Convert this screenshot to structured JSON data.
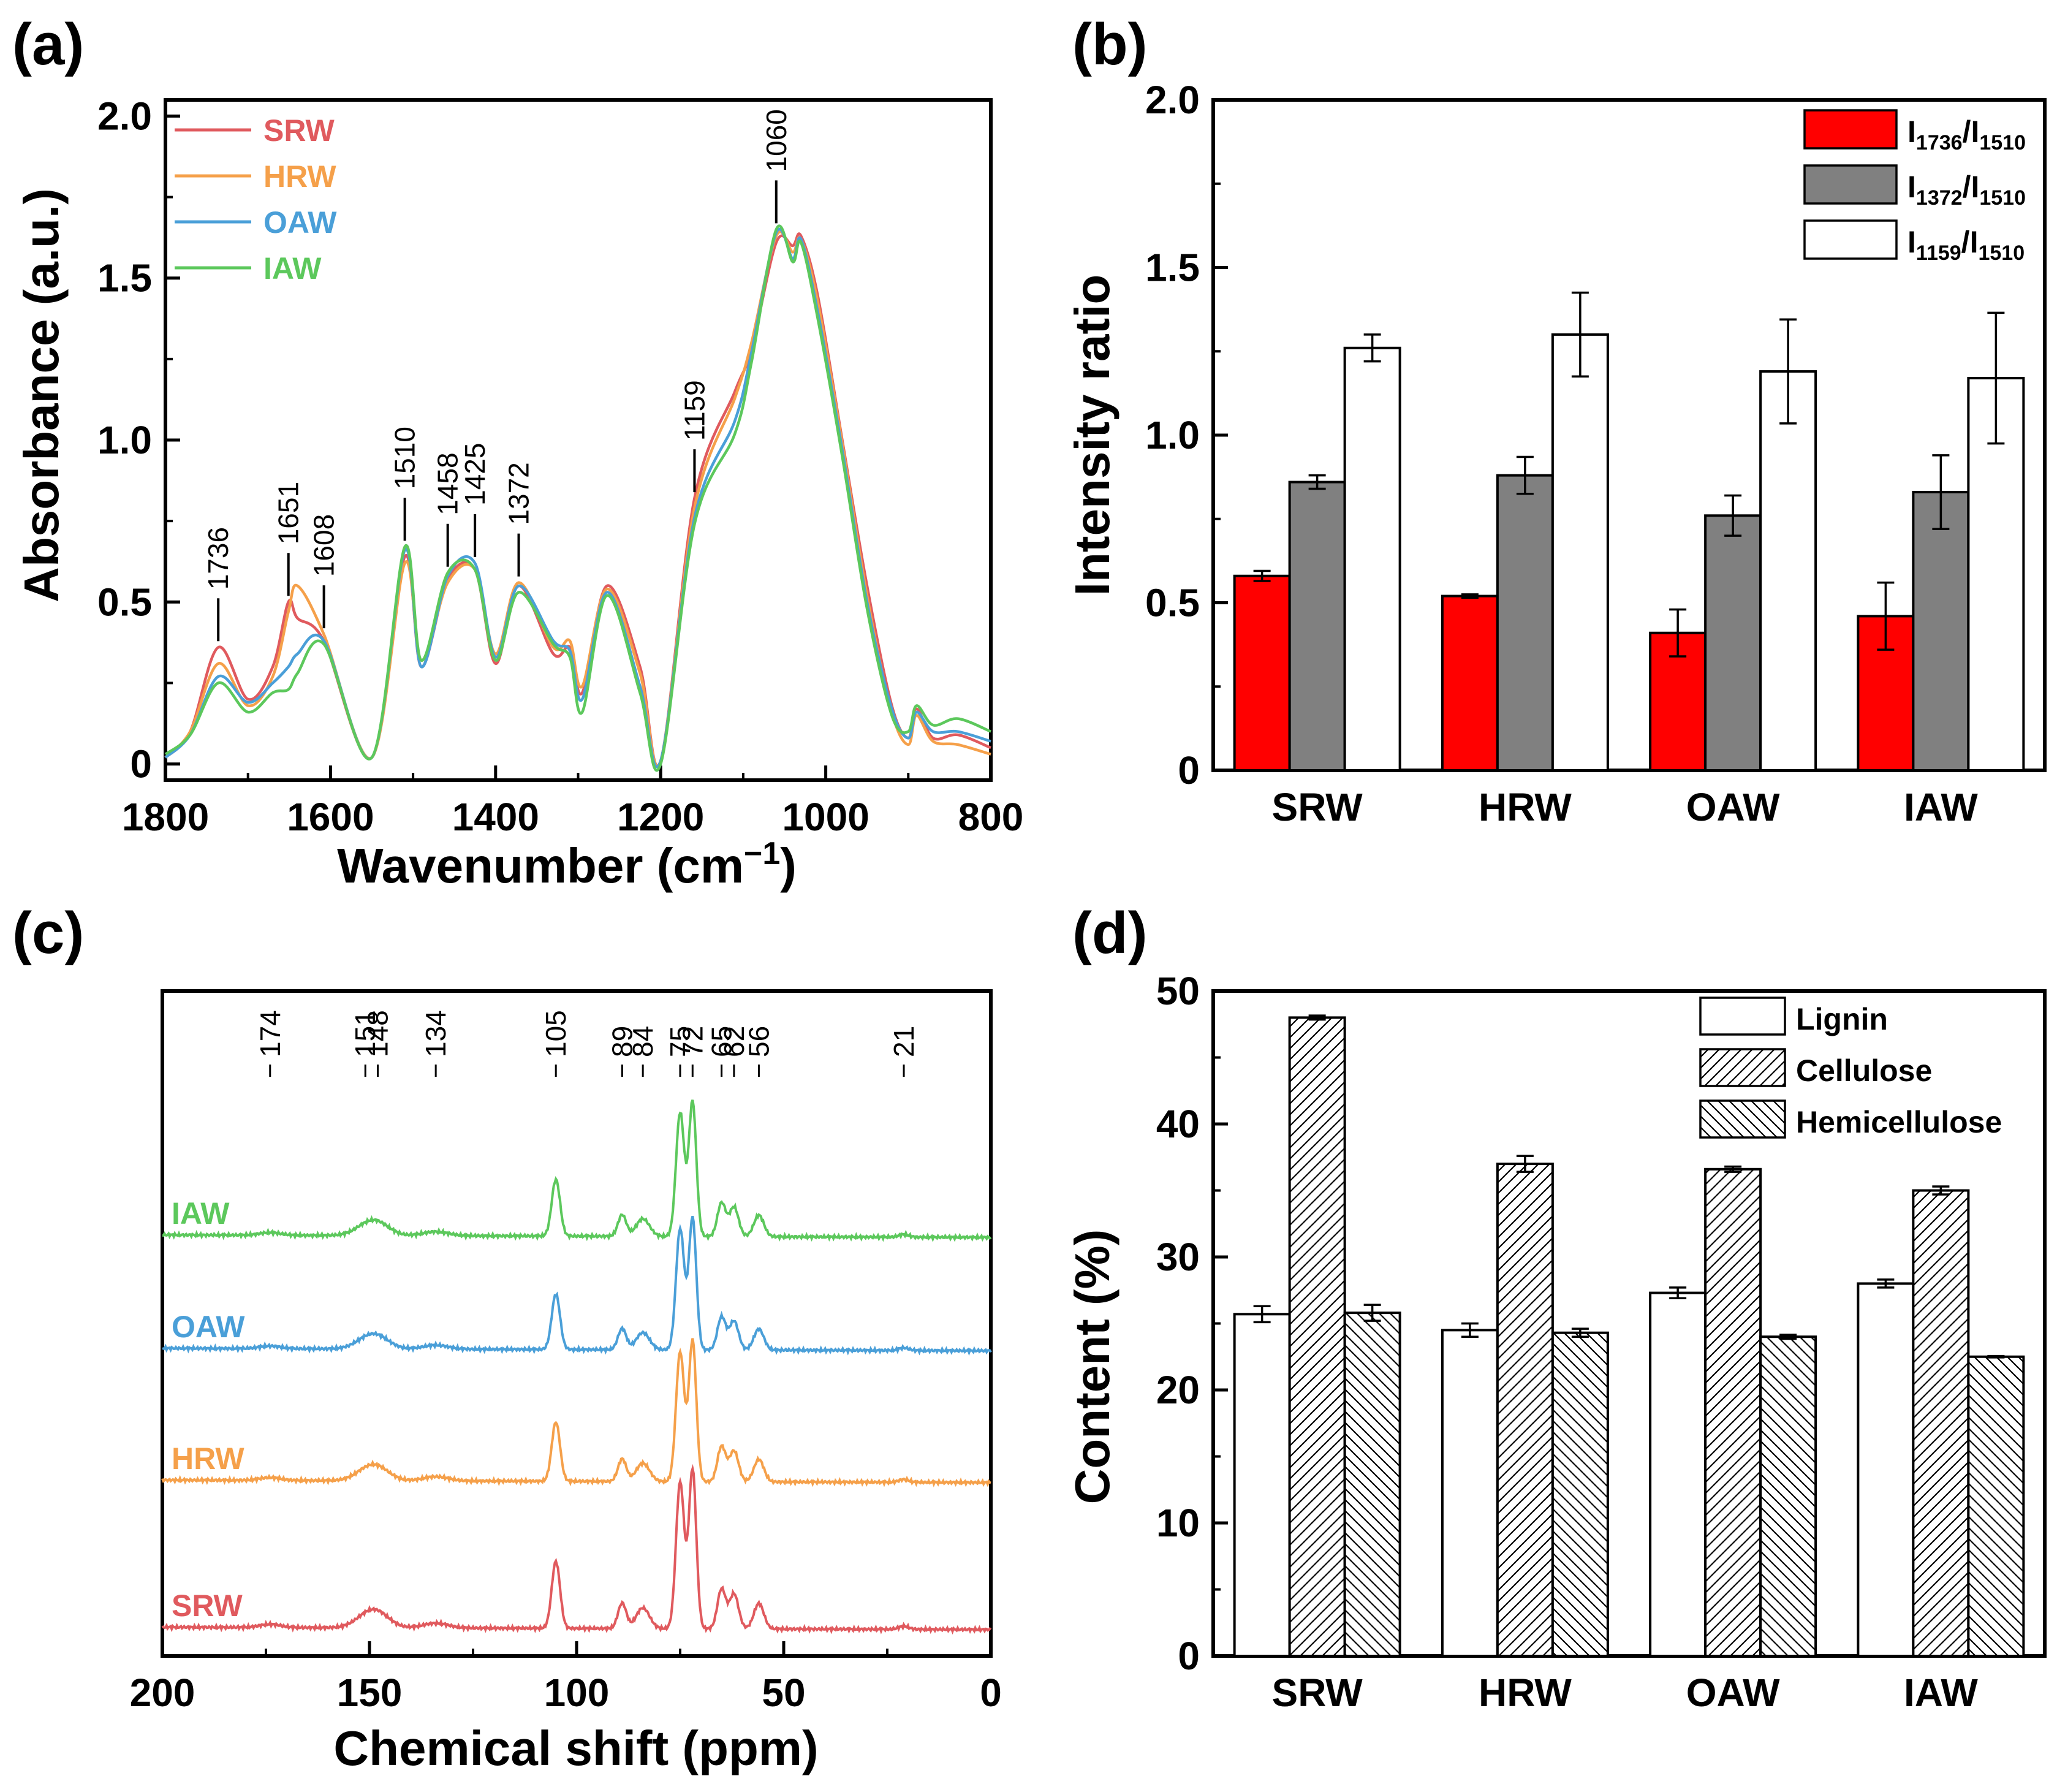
{
  "chart_data": [
    {
      "id": "a",
      "panel_label": "(a)",
      "type": "line",
      "title": "",
      "xlabel": "Wavenumber (cm",
      "xlabel_sup": "−1",
      "xlabel_close": ")",
      "ylabel": "Absorbance (a.u.)",
      "xlim": [
        1800,
        800
      ],
      "ylim": [
        -0.05,
        2.05
      ],
      "xticks": [
        1800,
        1600,
        1400,
        1200,
        1000,
        800
      ],
      "yticks": [
        0,
        0.5,
        1.0,
        1.5,
        2.0
      ],
      "ytick_labels": [
        "0",
        "0.5",
        "1.0",
        "1.5",
        "2.0"
      ],
      "legend_position": "top-left",
      "series": [
        {
          "name": "SRW",
          "color": "#e05a5e",
          "y": [
            0.02,
            0.1,
            0.36,
            0.2,
            0.3,
            0.5,
            0.45,
            0.38,
            0.02,
            0.64,
            0.3,
            0.57,
            0.6,
            0.31,
            0.55,
            0.34,
            0.36,
            0.22,
            0.55,
            0.3,
            0.01,
            0.82,
            1.15,
            1.28,
            1.61,
            1.6,
            1.63,
            1.45,
            1.0,
            0.55,
            0.18,
            0.08,
            0.17,
            0.08,
            0.09,
            0.05
          ]
        },
        {
          "name": "HRW",
          "color": "#f5a04a",
          "y": [
            0.02,
            0.1,
            0.31,
            0.18,
            0.27,
            0.47,
            0.55,
            0.4,
            0.02,
            0.62,
            0.32,
            0.56,
            0.6,
            0.34,
            0.56,
            0.36,
            0.38,
            0.24,
            0.54,
            0.28,
            0.01,
            0.79,
            1.13,
            1.3,
            1.63,
            1.58,
            1.62,
            1.43,
            0.99,
            0.52,
            0.16,
            0.06,
            0.15,
            0.07,
            0.06,
            0.03
          ]
        },
        {
          "name": "OAW",
          "color": "#4a9fd8",
          "y": [
            0.02,
            0.09,
            0.27,
            0.19,
            0.25,
            0.3,
            0.34,
            0.38,
            0.02,
            0.66,
            0.3,
            0.58,
            0.62,
            0.33,
            0.55,
            0.38,
            0.35,
            0.2,
            0.53,
            0.24,
            0.01,
            0.76,
            1.06,
            1.27,
            1.64,
            1.56,
            1.62,
            1.4,
            0.97,
            0.5,
            0.17,
            0.08,
            0.16,
            0.1,
            0.1,
            0.07
          ]
        },
        {
          "name": "IAW",
          "color": "#5cc85c",
          "y": [
            0.03,
            0.09,
            0.25,
            0.16,
            0.22,
            0.23,
            0.28,
            0.37,
            0.02,
            0.67,
            0.32,
            0.59,
            0.6,
            0.32,
            0.53,
            0.37,
            0.33,
            0.16,
            0.52,
            0.22,
            0.0,
            0.74,
            1.02,
            1.24,
            1.65,
            1.55,
            1.61,
            1.38,
            0.95,
            0.48,
            0.15,
            0.1,
            0.18,
            0.12,
            0.14,
            0.1
          ]
        }
      ],
      "x": [
        1800,
        1770,
        1736,
        1700,
        1670,
        1651,
        1640,
        1608,
        1550,
        1510,
        1490,
        1458,
        1425,
        1400,
        1372,
        1330,
        1310,
        1295,
        1265,
        1225,
        1200,
        1159,
        1110,
        1090,
        1060,
        1040,
        1030,
        1010,
        980,
        950,
        920,
        900,
        890,
        870,
        840,
        800
      ],
      "peak_labels": [
        {
          "x": 1736,
          "text": "1736"
        },
        {
          "x": 1651,
          "text": "1651"
        },
        {
          "x": 1608,
          "text": "1608"
        },
        {
          "x": 1510,
          "text": "1510"
        },
        {
          "x": 1458,
          "text": "1458"
        },
        {
          "x": 1425,
          "text": "1425"
        },
        {
          "x": 1372,
          "text": "1372"
        },
        {
          "x": 1159,
          "text": "1159"
        },
        {
          "x": 1060,
          "text": "1060"
        }
      ]
    },
    {
      "id": "b",
      "panel_label": "(b)",
      "type": "bar",
      "title": "",
      "xlabel": "",
      "ylabel": "Intensity ratio",
      "categories": [
        "SRW",
        "HRW",
        "OAW",
        "IAW"
      ],
      "ylim": [
        0,
        2.0
      ],
      "yticks": [
        0,
        0.5,
        1.0,
        1.5,
        2.0
      ],
      "ytick_labels": [
        "0",
        "0.5",
        "1.0",
        "1.5",
        "2.0"
      ],
      "legend_position": "top-right",
      "series": [
        {
          "name": "I1736/I1510",
          "label_main": "I",
          "sub1": "1736",
          "slash": "/I",
          "sub2": "1510",
          "color": "#ff0000",
          "values": [
            0.58,
            0.52,
            0.41,
            0.46
          ],
          "errors": [
            0.015,
            0.005,
            0.07,
            0.1
          ]
        },
        {
          "name": "I1372/I1510",
          "label_main": "I",
          "sub1": "1372",
          "slash": "/I",
          "sub2": "1510",
          "color": "#808080",
          "values": [
            0.86,
            0.88,
            0.76,
            0.83
          ],
          "errors": [
            0.02,
            0.055,
            0.06,
            0.11
          ]
        },
        {
          "name": "I1159/I1510",
          "label_main": "I",
          "sub1": "1159",
          "slash": "/I",
          "sub2": "1510",
          "color": "#ffffff",
          "values": [
            1.26,
            1.3,
            1.19,
            1.17
          ],
          "errors": [
            0.04,
            0.125,
            0.155,
            0.195
          ]
        }
      ]
    },
    {
      "id": "c",
      "panel_label": "(c)",
      "type": "line",
      "title": "",
      "xlabel": "Chemical shift (ppm)",
      "ylabel": "",
      "xlim": [
        200,
        0
      ],
      "xticks": [
        200,
        150,
        100,
        50,
        0
      ],
      "peak_labels": [
        "174",
        "151",
        "148",
        "134",
        "105",
        "89",
        "84",
        "75",
        "72",
        "65",
        "62",
        "56",
        "21"
      ],
      "peak_positions": [
        174,
        151,
        148,
        134,
        105,
        89,
        84,
        75,
        72,
        65,
        62,
        56,
        21
      ],
      "series": [
        {
          "name": "IAW",
          "color": "#5cc85c"
        },
        {
          "name": "OAW",
          "color": "#4a9fd8"
        },
        {
          "name": "HRW",
          "color": "#f5a04a"
        },
        {
          "name": "SRW",
          "color": "#e05a5e"
        }
      ]
    },
    {
      "id": "d",
      "panel_label": "(d)",
      "type": "bar",
      "title": "",
      "xlabel": "",
      "ylabel": "Content (%)",
      "categories": [
        "SRW",
        "HRW",
        "OAW",
        "IAW"
      ],
      "ylim": [
        0,
        50
      ],
      "yticks": [
        0,
        10,
        20,
        30,
        40,
        50
      ],
      "ytick_labels": [
        "0",
        "10",
        "20",
        "30",
        "40",
        "50"
      ],
      "legend_position": "top-right",
      "series": [
        {
          "name": "Lignin",
          "pattern": "none",
          "values": [
            25.7,
            24.5,
            27.3,
            28.0
          ],
          "errors": [
            0.6,
            0.5,
            0.4,
            0.3
          ]
        },
        {
          "name": "Cellulose",
          "pattern": "forward",
          "values": [
            48.0,
            37.0,
            36.6,
            35.0
          ],
          "errors": [
            0.15,
            0.6,
            0.2,
            0.3
          ]
        },
        {
          "name": "Hemicellulose",
          "pattern": "back",
          "values": [
            25.8,
            24.3,
            24.0,
            22.5
          ],
          "errors": [
            0.6,
            0.3,
            0.15,
            0.05
          ]
        }
      ]
    }
  ]
}
